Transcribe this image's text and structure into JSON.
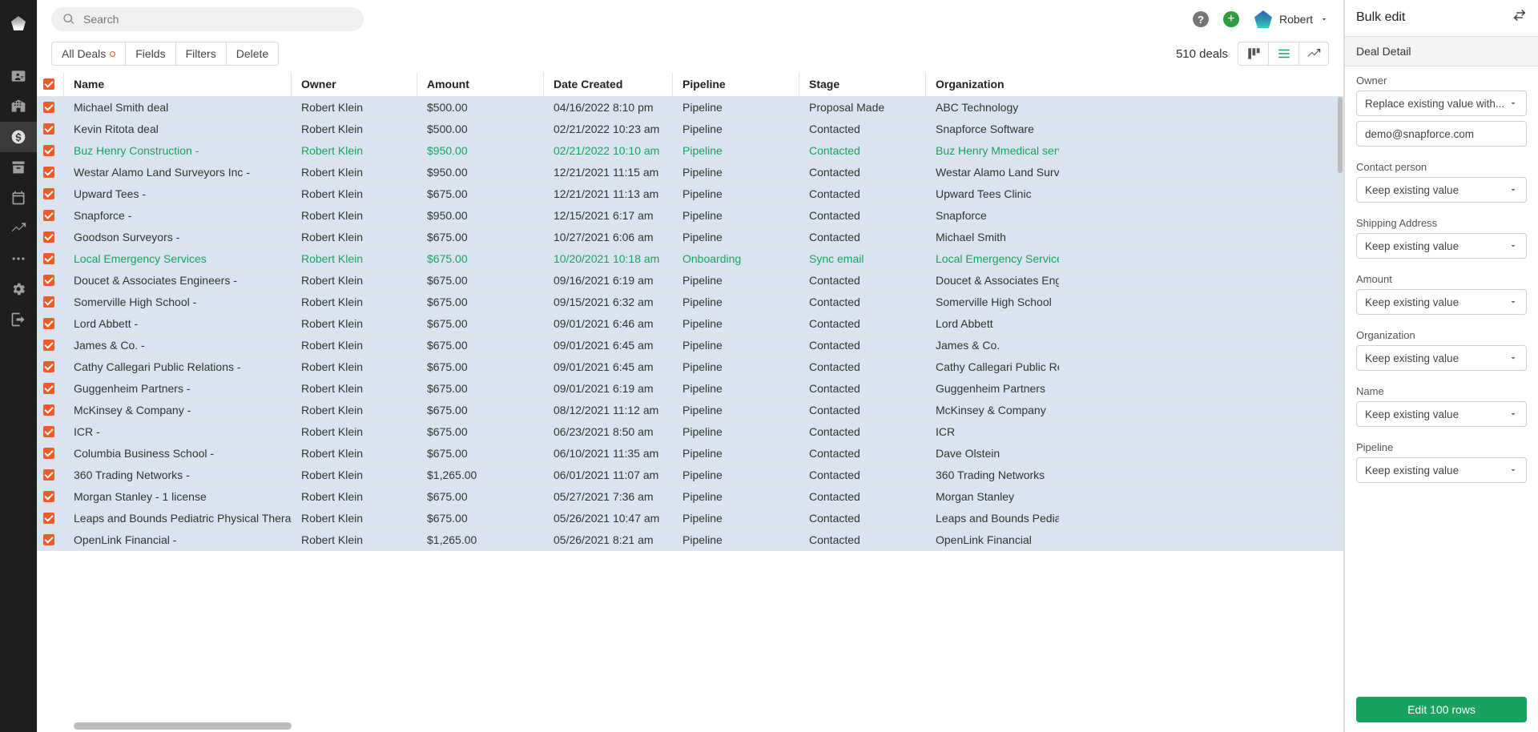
{
  "colors": {
    "row_bg": "#d9e4f0",
    "check_bg": "#ee5a24",
    "highlight_text": "#19a25e",
    "primary_button": "#19a25e",
    "plus_bg": "#2e9b3c",
    "help_bg": "#757575",
    "nav_bg": "#1e1e1e"
  },
  "topbar": {
    "search_placeholder": "Search",
    "user_name": "Robert"
  },
  "toolbar": {
    "all_deals": "All Deals",
    "fields": "Fields",
    "filters": "Filters",
    "delete": "Delete",
    "deals_count": "510 deals"
  },
  "columns": [
    "Name",
    "Owner",
    "Amount",
    "Date Created",
    "Pipeline",
    "Stage",
    "Organization"
  ],
  "rows": [
    {
      "name": "Michael Smith deal",
      "owner": "Robert Klein",
      "amount": "$500.00",
      "date": "04/16/2022 8:10 pm",
      "pipeline": "Pipeline",
      "stage": "Proposal Made",
      "org": "ABC Technology",
      "hl": false
    },
    {
      "name": "Kevin Ritota deal",
      "owner": "Robert Klein",
      "amount": "$500.00",
      "date": "02/21/2022 10:23 am",
      "pipeline": "Pipeline",
      "stage": "Contacted",
      "org": "Snapforce Software",
      "hl": false
    },
    {
      "name": "Buz Henry Construction -",
      "owner": "Robert Klein",
      "amount": "$950.00",
      "date": "02/21/2022 10:10 am",
      "pipeline": "Pipeline",
      "stage": "Contacted",
      "org": "Buz Henry Mmedical servic",
      "hl": true
    },
    {
      "name": "Westar Alamo Land Surveyors Inc -",
      "owner": "Robert Klein",
      "amount": "$950.00",
      "date": "12/21/2021 11:15 am",
      "pipeline": "Pipeline",
      "stage": "Contacted",
      "org": "Westar Alamo Land Surveyo",
      "hl": false
    },
    {
      "name": "Upward Tees -",
      "owner": "Robert Klein",
      "amount": "$675.00",
      "date": "12/21/2021 11:13 am",
      "pipeline": "Pipeline",
      "stage": "Contacted",
      "org": "Upward Tees Clinic",
      "hl": false
    },
    {
      "name": "Snapforce -",
      "owner": "Robert Klein",
      "amount": "$950.00",
      "date": "12/15/2021 6:17 am",
      "pipeline": "Pipeline",
      "stage": "Contacted",
      "org": "Snapforce",
      "hl": false
    },
    {
      "name": "Goodson Surveyors -",
      "owner": "Robert Klein",
      "amount": "$675.00",
      "date": "10/27/2021 6:06 am",
      "pipeline": "Pipeline",
      "stage": "Contacted",
      "org": "Michael Smith",
      "hl": false
    },
    {
      "name": "Local Emergency Services",
      "owner": "Robert Klein",
      "amount": "$675.00",
      "date": "10/20/2021 10:18 am",
      "pipeline": "Onboarding",
      "stage": "Sync email",
      "org": "Local Emergency Services",
      "hl": true
    },
    {
      "name": "Doucet & Associates Engineers -",
      "owner": "Robert Klein",
      "amount": "$675.00",
      "date": "09/16/2021 6:19 am",
      "pipeline": "Pipeline",
      "stage": "Contacted",
      "org": "Doucet & Associates Engine",
      "hl": false
    },
    {
      "name": "Somerville High School -",
      "owner": "Robert Klein",
      "amount": "$675.00",
      "date": "09/15/2021 6:32 am",
      "pipeline": "Pipeline",
      "stage": "Contacted",
      "org": "Somerville High School",
      "hl": false
    },
    {
      "name": "Lord Abbett -",
      "owner": "Robert Klein",
      "amount": "$675.00",
      "date": "09/01/2021 6:46 am",
      "pipeline": "Pipeline",
      "stage": "Contacted",
      "org": "Lord Abbett",
      "hl": false
    },
    {
      "name": "James & Co. -",
      "owner": "Robert Klein",
      "amount": "$675.00",
      "date": "09/01/2021 6:45 am",
      "pipeline": "Pipeline",
      "stage": "Contacted",
      "org": "James & Co.",
      "hl": false
    },
    {
      "name": "Cathy Callegari Public Relations -",
      "owner": "Robert Klein",
      "amount": "$675.00",
      "date": "09/01/2021 6:45 am",
      "pipeline": "Pipeline",
      "stage": "Contacted",
      "org": "Cathy Callegari Public Relat",
      "hl": false
    },
    {
      "name": "Guggenheim Partners -",
      "owner": "Robert Klein",
      "amount": "$675.00",
      "date": "09/01/2021 6:19 am",
      "pipeline": "Pipeline",
      "stage": "Contacted",
      "org": "Guggenheim Partners",
      "hl": false
    },
    {
      "name": "McKinsey & Company -",
      "owner": "Robert Klein",
      "amount": "$675.00",
      "date": "08/12/2021 11:12 am",
      "pipeline": "Pipeline",
      "stage": "Contacted",
      "org": "McKinsey & Company",
      "hl": false
    },
    {
      "name": "ICR -",
      "owner": "Robert Klein",
      "amount": "$675.00",
      "date": "06/23/2021 8:50 am",
      "pipeline": "Pipeline",
      "stage": "Contacted",
      "org": "ICR",
      "hl": false
    },
    {
      "name": "Columbia Business School -",
      "owner": "Robert Klein",
      "amount": "$675.00",
      "date": "06/10/2021 11:35 am",
      "pipeline": "Pipeline",
      "stage": "Contacted",
      "org": "Dave Olstein",
      "hl": false
    },
    {
      "name": "360 Trading Networks -",
      "owner": "Robert Klein",
      "amount": "$1,265.00",
      "date": "06/01/2021 11:07 am",
      "pipeline": "Pipeline",
      "stage": "Contacted",
      "org": "360 Trading Networks",
      "hl": false
    },
    {
      "name": "Morgan Stanley - 1 license",
      "owner": "Robert Klein",
      "amount": "$675.00",
      "date": "05/27/2021 7:36 am",
      "pipeline": "Pipeline",
      "stage": "Contacted",
      "org": "Morgan Stanley",
      "hl": false
    },
    {
      "name": "Leaps and Bounds Pediatric Physical Therapy -",
      "owner": "Robert Klein",
      "amount": "$675.00",
      "date": "05/26/2021 10:47 am",
      "pipeline": "Pipeline",
      "stage": "Contacted",
      "org": "Leaps and Bounds Pediatric",
      "hl": false
    },
    {
      "name": "OpenLink Financial -",
      "owner": "Robert Klein",
      "amount": "$1,265.00",
      "date": "05/26/2021 8:21 am",
      "pipeline": "Pipeline",
      "stage": "Contacted",
      "org": "OpenLink Financial",
      "hl": false
    }
  ],
  "bulk_edit": {
    "title": "Bulk edit",
    "section": "Deal Detail",
    "fields": [
      {
        "label": "Owner",
        "select": "Replace existing value with...",
        "input": "demo@snapforce.com"
      },
      {
        "label": "Contact person",
        "select": "Keep existing value"
      },
      {
        "label": "Shipping Address",
        "select": "Keep existing value"
      },
      {
        "label": "Amount",
        "select": "Keep existing value"
      },
      {
        "label": "Organization",
        "select": "Keep existing value"
      },
      {
        "label": "Name",
        "select": "Keep existing value"
      },
      {
        "label": "Pipeline",
        "select": "Keep existing value"
      }
    ],
    "submit": "Edit 100 rows"
  }
}
